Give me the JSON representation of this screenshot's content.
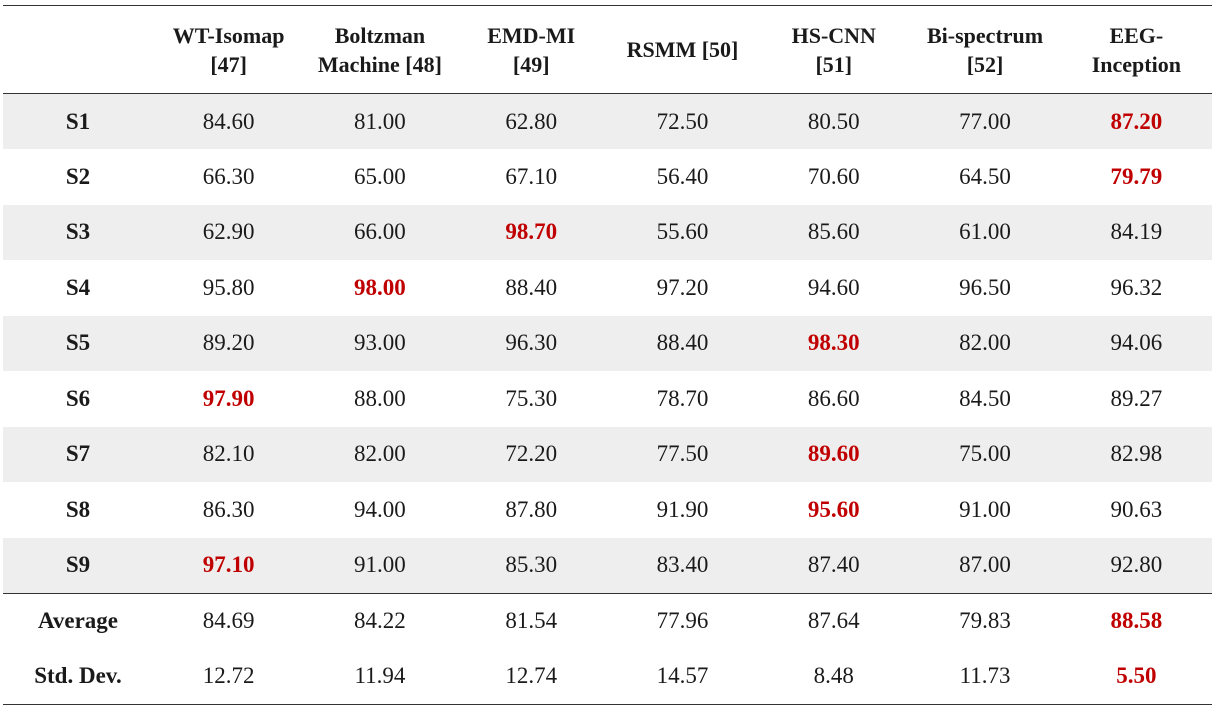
{
  "chart_data": {
    "type": "table",
    "columns": [
      "",
      "WT-Isomap [47]",
      "Boltzman Machine [48]",
      "EMD-MI [49]",
      "RSMM [50]",
      "HS-CNN [51]",
      "Bi-spectrum [52]",
      "EEG-Inception"
    ],
    "header_lines": [
      [
        ""
      ],
      [
        "WT-Isomap",
        "[47]"
      ],
      [
        "Boltzman",
        "Machine [48]"
      ],
      [
        "EMD-MI",
        "[49]"
      ],
      [
        "RSMM [50]"
      ],
      [
        "HS-CNN",
        "[51]"
      ],
      [
        "Bi-spectrum",
        "[52]"
      ],
      [
        "EEG-",
        "Inception"
      ]
    ],
    "rows": [
      {
        "label": "S1",
        "values": [
          "84.60",
          "81.00",
          "62.80",
          "72.50",
          "80.50",
          "77.00",
          "87.20"
        ],
        "best": [
          6
        ]
      },
      {
        "label": "S2",
        "values": [
          "66.30",
          "65.00",
          "67.10",
          "56.40",
          "70.60",
          "64.50",
          "79.79"
        ],
        "best": [
          6
        ]
      },
      {
        "label": "S3",
        "values": [
          "62.90",
          "66.00",
          "98.70",
          "55.60",
          "85.60",
          "61.00",
          "84.19"
        ],
        "best": [
          2
        ]
      },
      {
        "label": "S4",
        "values": [
          "95.80",
          "98.00",
          "88.40",
          "97.20",
          "94.60",
          "96.50",
          "96.32"
        ],
        "best": [
          1
        ]
      },
      {
        "label": "S5",
        "values": [
          "89.20",
          "93.00",
          "96.30",
          "88.40",
          "98.30",
          "82.00",
          "94.06"
        ],
        "best": [
          4
        ]
      },
      {
        "label": "S6",
        "values": [
          "97.90",
          "88.00",
          "75.30",
          "78.70",
          "86.60",
          "84.50",
          "89.27"
        ],
        "best": [
          0
        ]
      },
      {
        "label": "S7",
        "values": [
          "82.10",
          "82.00",
          "72.20",
          "77.50",
          "89.60",
          "75.00",
          "82.98"
        ],
        "best": [
          4
        ]
      },
      {
        "label": "S8",
        "values": [
          "86.30",
          "94.00",
          "87.80",
          "91.90",
          "95.60",
          "91.00",
          "90.63"
        ],
        "best": [
          4
        ]
      },
      {
        "label": "S9",
        "values": [
          "97.10",
          "91.00",
          "85.30",
          "83.40",
          "87.40",
          "87.00",
          "92.80"
        ],
        "best": [
          0
        ]
      }
    ],
    "summary_rows": [
      {
        "label": "Average",
        "values": [
          "84.69",
          "84.22",
          "81.54",
          "77.96",
          "87.64",
          "79.83",
          "88.58"
        ],
        "best": [
          6
        ]
      },
      {
        "label": "Std. Dev.",
        "values": [
          "12.72",
          "11.94",
          "12.74",
          "14.57",
          "8.48",
          "11.73",
          "5.50"
        ],
        "best": [
          6
        ]
      }
    ],
    "highlight_color": "#c00000",
    "shaded_row_color": "#eeeeee"
  }
}
